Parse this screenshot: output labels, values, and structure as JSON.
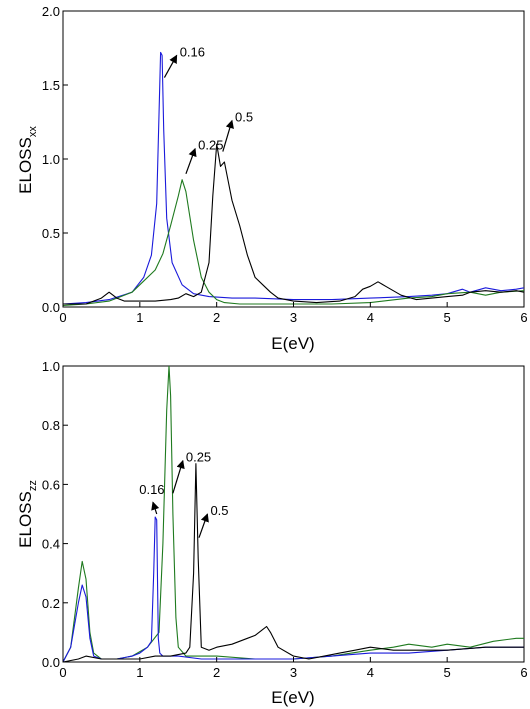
{
  "chart_data": [
    {
      "type": "line",
      "xlabel": "E(eV)",
      "ylabel": "ELOSS",
      "ylabel_sub": "xx",
      "xlim": [
        0,
        6
      ],
      "ylim": [
        0,
        2.0
      ],
      "xticks": [
        0,
        1,
        2,
        3,
        4,
        5,
        6
      ],
      "xtick_labels": [
        "0",
        "1",
        "2",
        "3",
        "4",
        "5",
        "6"
      ],
      "yticks": [
        0,
        0.5,
        1.0,
        1.5,
        2.0
      ],
      "ytick_labels": [
        "0.0",
        "0.5",
        "1.0",
        "1.5",
        "2.0"
      ],
      "grid": false,
      "series": [
        {
          "color": "#1a1adb",
          "x": [
            0,
            0.3,
            0.6,
            0.9,
            1.05,
            1.15,
            1.22,
            1.25,
            1.27,
            1.29,
            1.31,
            1.35,
            1.42,
            1.55,
            1.7,
            1.9,
            2.2,
            2.5,
            3.0,
            3.5,
            4.0,
            4.5,
            4.8,
            5.0,
            5.2,
            5.3,
            5.5,
            5.7,
            5.9,
            6
          ],
          "y": [
            0.02,
            0.03,
            0.05,
            0.1,
            0.2,
            0.35,
            0.7,
            1.3,
            1.72,
            1.7,
            1.2,
            0.6,
            0.3,
            0.15,
            0.09,
            0.07,
            0.06,
            0.06,
            0.05,
            0.05,
            0.06,
            0.07,
            0.08,
            0.09,
            0.12,
            0.1,
            0.13,
            0.11,
            0.12,
            0.13
          ]
        },
        {
          "color": "#1f7a1f",
          "x": [
            0,
            0.3,
            0.6,
            0.9,
            1.0,
            1.2,
            1.3,
            1.4,
            1.5,
            1.55,
            1.6,
            1.7,
            1.8,
            1.9,
            2.0,
            2.1,
            2.3,
            2.6,
            3.0,
            3.5,
            4.0,
            4.5,
            4.8,
            5.0,
            5.3,
            5.5,
            5.7,
            6
          ],
          "y": [
            0.01,
            0.02,
            0.04,
            0.1,
            0.15,
            0.25,
            0.36,
            0.55,
            0.75,
            0.86,
            0.78,
            0.45,
            0.2,
            0.1,
            0.05,
            0.03,
            0.02,
            0.02,
            0.02,
            0.02,
            0.03,
            0.06,
            0.07,
            0.09,
            0.1,
            0.08,
            0.1,
            0.11
          ]
        },
        {
          "color": "#000000",
          "x": [
            0,
            0.3,
            0.5,
            0.6,
            0.7,
            0.8,
            1.0,
            1.2,
            1.4,
            1.5,
            1.6,
            1.7,
            1.8,
            1.9,
            1.95,
            2.0,
            2.05,
            2.1,
            2.15,
            2.2,
            2.3,
            2.4,
            2.5,
            2.6,
            2.7,
            2.8,
            3.0,
            3.3,
            3.6,
            3.8,
            3.9,
            4.0,
            4.1,
            4.2,
            4.4,
            4.6,
            4.8,
            5.0,
            5.2,
            5.3,
            5.5,
            5.7,
            5.9,
            6
          ],
          "y": [
            0.02,
            0.02,
            0.06,
            0.1,
            0.06,
            0.04,
            0.04,
            0.04,
            0.05,
            0.06,
            0.09,
            0.07,
            0.1,
            0.3,
            0.75,
            1.1,
            0.95,
            0.98,
            0.85,
            0.72,
            0.55,
            0.35,
            0.2,
            0.15,
            0.1,
            0.06,
            0.04,
            0.03,
            0.04,
            0.07,
            0.12,
            0.14,
            0.17,
            0.14,
            0.08,
            0.05,
            0.06,
            0.07,
            0.08,
            0.1,
            0.11,
            0.1,
            0.11,
            0.1
          ]
        }
      ],
      "annotations": [
        {
          "text": "0.16",
          "x_from": 1.32,
          "y_from": 1.55,
          "x_to": 1.48,
          "y_to": 1.7
        },
        {
          "text": "0.25",
          "x_from": 1.6,
          "y_from": 0.9,
          "x_to": 1.72,
          "y_to": 1.07
        },
        {
          "text": "0.5",
          "x_from": 2.08,
          "y_from": 1.05,
          "x_to": 2.2,
          "y_to": 1.26
        }
      ]
    },
    {
      "type": "line",
      "xlabel": "E(eV)",
      "ylabel": "ELOSS",
      "ylabel_sub": "zz",
      "xlim": [
        0,
        6
      ],
      "ylim": [
        0,
        1.0
      ],
      "xticks": [
        0,
        1,
        2,
        3,
        4,
        5,
        6
      ],
      "xtick_labels": [
        "0",
        "1",
        "2",
        "3",
        "4",
        "5",
        "6"
      ],
      "yticks": [
        0,
        0.2,
        0.4,
        0.6,
        0.8,
        1.0
      ],
      "ytick_labels": [
        "0.0",
        "0.2",
        "0.4",
        "0.6",
        "0.8",
        "1.0"
      ],
      "grid": false,
      "series": [
        {
          "color": "#1f7a1f",
          "x": [
            0,
            0.1,
            0.2,
            0.25,
            0.3,
            0.35,
            0.4,
            0.5,
            0.7,
            0.9,
            1.1,
            1.25,
            1.3,
            1.35,
            1.38,
            1.4,
            1.43,
            1.47,
            1.5,
            1.6,
            1.8,
            2.0,
            2.5,
            3.0,
            3.5,
            4.0,
            4.3,
            4.5,
            4.8,
            5.0,
            5.3,
            5.6,
            5.9,
            6
          ],
          "y": [
            0.0,
            0.05,
            0.25,
            0.34,
            0.28,
            0.1,
            0.03,
            0.01,
            0.01,
            0.02,
            0.05,
            0.1,
            0.4,
            0.85,
            1.0,
            0.9,
            0.5,
            0.15,
            0.05,
            0.02,
            0.02,
            0.02,
            0.01,
            0.01,
            0.02,
            0.04,
            0.05,
            0.06,
            0.05,
            0.06,
            0.05,
            0.07,
            0.08,
            0.08
          ]
        },
        {
          "color": "#1a1adb",
          "x": [
            0,
            0.1,
            0.2,
            0.25,
            0.3,
            0.35,
            0.4,
            0.5,
            0.7,
            0.9,
            1.0,
            1.1,
            1.15,
            1.18,
            1.2,
            1.22,
            1.24,
            1.26,
            1.3,
            1.5,
            1.8,
            2.0,
            2.5,
            3.0,
            3.5,
            4.0,
            4.5,
            5.0,
            5.5,
            6
          ],
          "y": [
            0.0,
            0.05,
            0.2,
            0.26,
            0.22,
            0.08,
            0.02,
            0.01,
            0.01,
            0.02,
            0.03,
            0.05,
            0.07,
            0.3,
            0.49,
            0.48,
            0.08,
            0.03,
            0.02,
            0.02,
            0.01,
            0.01,
            0.01,
            0.01,
            0.02,
            0.03,
            0.03,
            0.04,
            0.05,
            0.05
          ]
        },
        {
          "color": "#000000",
          "x": [
            0,
            0.2,
            0.3,
            0.5,
            0.8,
            1.0,
            1.2,
            1.4,
            1.6,
            1.65,
            1.7,
            1.73,
            1.76,
            1.8,
            1.9,
            2.0,
            2.2,
            2.4,
            2.5,
            2.6,
            2.65,
            2.7,
            2.8,
            3.0,
            3.2,
            3.4,
            3.6,
            3.8,
            4.0,
            4.3,
            4.6,
            5.0,
            5.5,
            6
          ],
          "y": [
            0.0,
            0.01,
            0.02,
            0.01,
            0.01,
            0.01,
            0.02,
            0.02,
            0.03,
            0.05,
            0.3,
            0.67,
            0.35,
            0.05,
            0.04,
            0.05,
            0.06,
            0.08,
            0.09,
            0.11,
            0.12,
            0.1,
            0.05,
            0.02,
            0.01,
            0.02,
            0.03,
            0.04,
            0.05,
            0.04,
            0.04,
            0.04,
            0.05,
            0.05
          ]
        }
      ],
      "annotations": [
        {
          "text": "0.25",
          "x_from": 1.43,
          "y_from": 0.57,
          "x_to": 1.56,
          "y_to": 0.68
        },
        {
          "text": "0.16",
          "x_from": 1.22,
          "y_from": 0.5,
          "x_to": 1.17,
          "y_to": 0.54
        },
        {
          "text": "0.5",
          "x_from": 1.77,
          "y_from": 0.42,
          "x_to": 1.88,
          "y_to": 0.5
        }
      ]
    }
  ]
}
